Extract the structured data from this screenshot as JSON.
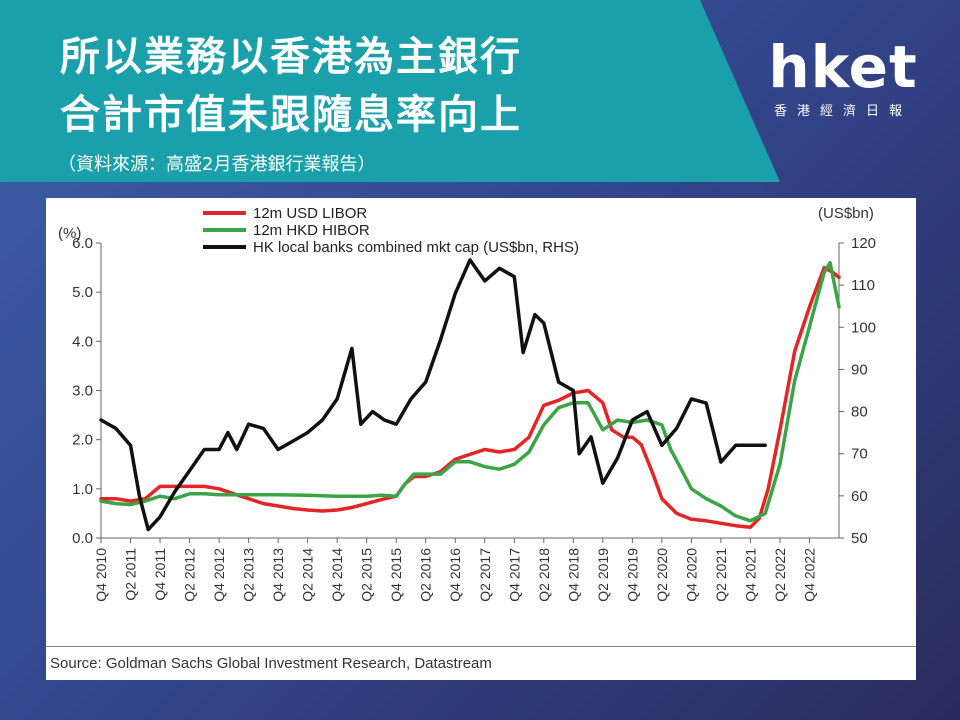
{
  "header": {
    "title_line1": "所以業務以香港為主銀行",
    "title_line2": "合計市值未跟隨息率向上",
    "subtitle": "（資料來源：高盛2月香港銀行業報告）"
  },
  "logo": {
    "main": "hket",
    "sub": "香港經濟日報"
  },
  "chart_data": {
    "type": "line",
    "left_unit": "(%)",
    "right_unit": "(US$bn)",
    "y_left_lim": [
      0,
      6
    ],
    "y_left_ticks": [
      "0.0",
      "1.0",
      "2.0",
      "3.0",
      "4.0",
      "5.0",
      "6.0"
    ],
    "y_right_lim": [
      50,
      120
    ],
    "y_right_ticks": [
      "50",
      "60",
      "70",
      "80",
      "90",
      "100",
      "110",
      "120"
    ],
    "x_ticks": [
      "Q4 2010",
      "Q2 2011",
      "Q4 2011",
      "Q2 2012",
      "Q4 2012",
      "Q2 2013",
      "Q4 2013",
      "Q2 2014",
      "Q4 2014",
      "Q2 2015",
      "Q4 2015",
      "Q2 2016",
      "Q4 2016",
      "Q2 2017",
      "Q4 2017",
      "Q2 2018",
      "Q4 2018",
      "Q2 2019",
      "Q4 2019",
      "Q2 2020",
      "Q4 2020",
      "Q2 2021",
      "Q4 2021",
      "Q2 2022",
      "Q4 2022"
    ],
    "x_range": [
      0,
      25
    ],
    "legend_position": "top-left",
    "series": [
      {
        "name": "12m USD LIBOR",
        "axis": "left",
        "color": "#e32526",
        "points": [
          [
            0,
            0.8
          ],
          [
            0.5,
            0.8
          ],
          [
            1,
            0.75
          ],
          [
            1.5,
            0.8
          ],
          [
            2,
            1.05
          ],
          [
            2.5,
            1.05
          ],
          [
            3,
            1.05
          ],
          [
            3.5,
            1.05
          ],
          [
            4,
            1.0
          ],
          [
            4.5,
            0.9
          ],
          [
            5,
            0.8
          ],
          [
            5.5,
            0.7
          ],
          [
            6,
            0.65
          ],
          [
            6.5,
            0.6
          ],
          [
            7,
            0.57
          ],
          [
            7.5,
            0.55
          ],
          [
            8,
            0.57
          ],
          [
            8.5,
            0.62
          ],
          [
            9,
            0.7
          ],
          [
            9.5,
            0.78
          ],
          [
            10,
            0.85
          ],
          [
            10.3,
            1.1
          ],
          [
            10.6,
            1.25
          ],
          [
            11,
            1.25
          ],
          [
            11.5,
            1.35
          ],
          [
            12,
            1.6
          ],
          [
            12.5,
            1.7
          ],
          [
            13,
            1.8
          ],
          [
            13.5,
            1.75
          ],
          [
            14,
            1.8
          ],
          [
            14.5,
            2.05
          ],
          [
            15,
            2.7
          ],
          [
            15.5,
            2.8
          ],
          [
            16,
            2.95
          ],
          [
            16.5,
            3.0
          ],
          [
            17,
            2.75
          ],
          [
            17.3,
            2.2
          ],
          [
            17.7,
            2.05
          ],
          [
            18,
            2.05
          ],
          [
            18.3,
            1.9
          ],
          [
            18.7,
            1.3
          ],
          [
            19,
            0.8
          ],
          [
            19.5,
            0.5
          ],
          [
            20,
            0.38
          ],
          [
            20.5,
            0.35
          ],
          [
            21,
            0.3
          ],
          [
            21.5,
            0.25
          ],
          [
            22,
            0.22
          ],
          [
            22.3,
            0.4
          ],
          [
            22.6,
            1.0
          ],
          [
            23,
            2.2
          ],
          [
            23.5,
            3.8
          ],
          [
            24,
            4.7
          ],
          [
            24.5,
            5.5
          ],
          [
            24.8,
            5.4
          ],
          [
            25,
            5.3
          ]
        ]
      },
      {
        "name": "12m HKD HIBOR",
        "axis": "left",
        "color": "#3aa447",
        "points": [
          [
            0,
            0.75
          ],
          [
            0.5,
            0.7
          ],
          [
            1,
            0.68
          ],
          [
            1.5,
            0.75
          ],
          [
            2,
            0.85
          ],
          [
            2.5,
            0.8
          ],
          [
            3,
            0.9
          ],
          [
            3.5,
            0.9
          ],
          [
            4,
            0.88
          ],
          [
            5,
            0.88
          ],
          [
            6,
            0.88
          ],
          [
            7,
            0.87
          ],
          [
            8,
            0.85
          ],
          [
            9,
            0.85
          ],
          [
            9.5,
            0.87
          ],
          [
            10,
            0.85
          ],
          [
            10.3,
            1.1
          ],
          [
            10.6,
            1.3
          ],
          [
            11,
            1.3
          ],
          [
            11.5,
            1.3
          ],
          [
            12,
            1.55
          ],
          [
            12.5,
            1.55
          ],
          [
            13,
            1.45
          ],
          [
            13.5,
            1.4
          ],
          [
            14,
            1.5
          ],
          [
            14.5,
            1.75
          ],
          [
            15,
            2.3
          ],
          [
            15.5,
            2.65
          ],
          [
            16,
            2.75
          ],
          [
            16.5,
            2.75
          ],
          [
            17,
            2.2
          ],
          [
            17.5,
            2.4
          ],
          [
            18,
            2.35
          ],
          [
            18.5,
            2.4
          ],
          [
            19,
            2.3
          ],
          [
            19.3,
            1.8
          ],
          [
            19.7,
            1.35
          ],
          [
            20,
            1.0
          ],
          [
            20.5,
            0.8
          ],
          [
            21,
            0.65
          ],
          [
            21.5,
            0.45
          ],
          [
            22,
            0.35
          ],
          [
            22.5,
            0.5
          ],
          [
            23,
            1.5
          ],
          [
            23.5,
            3.2
          ],
          [
            24,
            4.3
          ],
          [
            24.5,
            5.4
          ],
          [
            24.7,
            5.6
          ],
          [
            25,
            4.7
          ]
        ]
      },
      {
        "name": "HK local banks combined mkt cap (US$bn, RHS)",
        "axis": "right",
        "color": "#111111",
        "points": [
          [
            0,
            78
          ],
          [
            0.5,
            76
          ],
          [
            1,
            72
          ],
          [
            1.3,
            60
          ],
          [
            1.6,
            52
          ],
          [
            2,
            55
          ],
          [
            2.5,
            61
          ],
          [
            3,
            66
          ],
          [
            3.5,
            71
          ],
          [
            4,
            71
          ],
          [
            4.3,
            75
          ],
          [
            4.6,
            71
          ],
          [
            5,
            77
          ],
          [
            5.5,
            76
          ],
          [
            6,
            71
          ],
          [
            6.5,
            73
          ],
          [
            7,
            75
          ],
          [
            7.5,
            78
          ],
          [
            8,
            83
          ],
          [
            8.5,
            95
          ],
          [
            8.8,
            77
          ],
          [
            9.2,
            80
          ],
          [
            9.6,
            78
          ],
          [
            10,
            77
          ],
          [
            10.5,
            83
          ],
          [
            11,
            87
          ],
          [
            11.5,
            97
          ],
          [
            12,
            108
          ],
          [
            12.5,
            116
          ],
          [
            13,
            111
          ],
          [
            13.5,
            114
          ],
          [
            14,
            112
          ],
          [
            14.3,
            94
          ],
          [
            14.7,
            103
          ],
          [
            15,
            101
          ],
          [
            15.5,
            87
          ],
          [
            16,
            85
          ],
          [
            16.2,
            70
          ],
          [
            16.6,
            74
          ],
          [
            17,
            63
          ],
          [
            17.5,
            69
          ],
          [
            18,
            78
          ],
          [
            18.5,
            80
          ],
          [
            19,
            72
          ],
          [
            19.5,
            76
          ],
          [
            20,
            83
          ],
          [
            20.5,
            82
          ],
          [
            21,
            68
          ],
          [
            21.5,
            72
          ],
          [
            22,
            72
          ],
          [
            22.5,
            72
          ]
        ]
      }
    ],
    "source": "Source: Goldman Sachs Global Investment Research, Datastream"
  }
}
